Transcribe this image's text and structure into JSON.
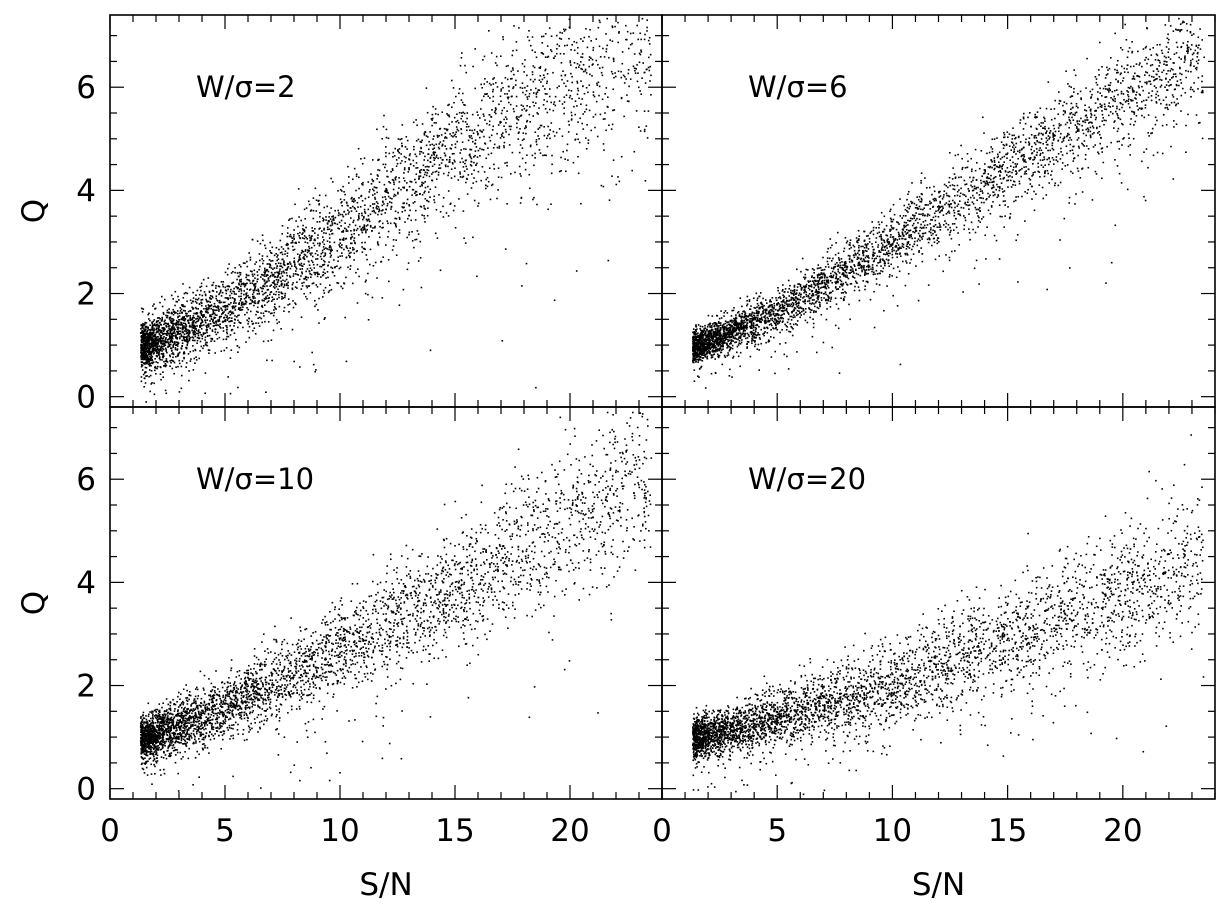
{
  "chart_data": {
    "type": "scatter",
    "layout": "2x2 panels with shared axes",
    "xlabel": "S/N",
    "ylabel": "Q",
    "xlim": [
      0,
      24
    ],
    "ylim": [
      -0.2,
      7.4
    ],
    "xticks": [
      0,
      5,
      10,
      15,
      20
    ],
    "yticks": [
      0,
      2,
      4,
      6
    ],
    "marker_color": "#000000",
    "panels": [
      {
        "label": "W/σ=2",
        "position": "top-left",
        "x_range": [
          1.3,
          23.5
        ],
        "trend": {
          "x": [
            1.5,
            5,
            10,
            15,
            20,
            23
          ],
          "y": [
            1.0,
            1.7,
            3.2,
            4.9,
            6.1,
            6.9
          ]
        },
        "scatter_sd": 0.35,
        "n_points": 4200
      },
      {
        "label": "W/σ=6",
        "position": "top-right",
        "x_range": [
          1.3,
          23.5
        ],
        "trend": {
          "x": [
            1.5,
            5,
            10,
            15,
            20,
            23
          ],
          "y": [
            1.0,
            1.65,
            3.0,
            4.45,
            5.9,
            6.6
          ]
        },
        "scatter_sd": 0.22,
        "n_points": 4200
      },
      {
        "label": "W/σ=10",
        "position": "bottom-left",
        "x_range": [
          1.3,
          23.5
        ],
        "trend": {
          "x": [
            1.5,
            5,
            10,
            15,
            20,
            23
          ],
          "y": [
            1.0,
            1.6,
            2.7,
            3.9,
            5.3,
            6.1
          ]
        },
        "scatter_sd": 0.3,
        "n_points": 4200
      },
      {
        "label": "W/σ=20",
        "position": "bottom-right",
        "x_range": [
          1.3,
          23.5
        ],
        "trend": {
          "x": [
            1.5,
            5,
            10,
            15,
            20,
            23
          ],
          "y": [
            1.0,
            1.4,
            2.05,
            2.95,
            3.8,
            4.4
          ]
        },
        "scatter_sd": 0.28,
        "n_points": 4200
      }
    ]
  }
}
